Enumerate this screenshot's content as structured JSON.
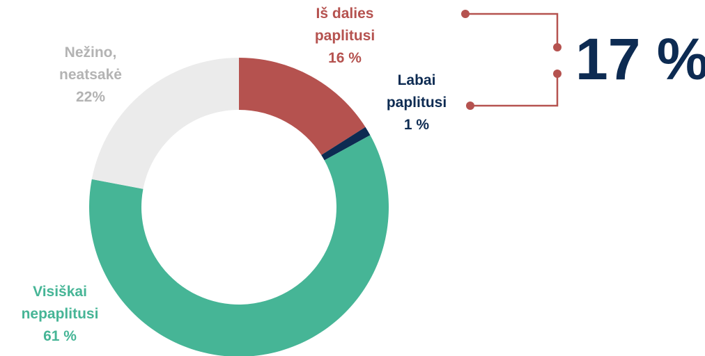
{
  "chart_data": {
    "type": "donut",
    "categories": [
      "Iš dalies paplitusi",
      "Labai paplitusi",
      "Visiškai nepaplitusi",
      "Nežino, neatsakė"
    ],
    "values": [
      16,
      1,
      61,
      22
    ],
    "value_labels": [
      "16 %",
      "1 %",
      "61 %",
      "22%"
    ],
    "colors": [
      "#b5524f",
      "#0d2b52",
      "#46b596",
      "#ebebeb"
    ],
    "label_colors": [
      "#b5524f",
      "#0d2b52",
      "#46b596",
      "#b3b3b3"
    ],
    "annotation": "17 %"
  }
}
